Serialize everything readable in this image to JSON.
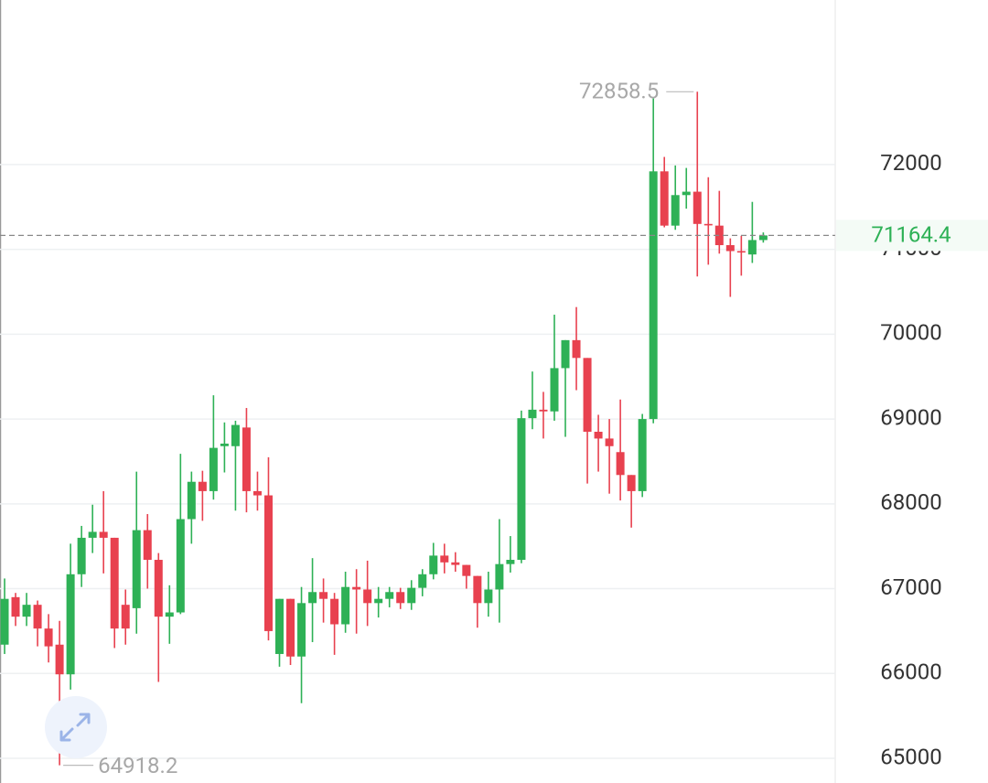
{
  "chart_data": {
    "type": "candlestick",
    "open": [
      66340,
      66900,
      66670,
      66810,
      66530,
      66340,
      65990,
      67170,
      67600,
      67670,
      67600,
      66810,
      66770,
      67690,
      67340,
      66670,
      66720,
      67820,
      68260,
      68150,
      68680,
      68680,
      68900,
      68150,
      68100,
      66230,
      66880,
      66200,
      66830,
      66960,
      66880,
      66580,
      67020,
      66990,
      66830,
      66880,
      66960,
      66830,
      67010,
      67170,
      67390,
      67310,
      67280,
      67150,
      66830,
      66990,
      67290,
      67340,
      69010,
      69110,
      69090,
      69600,
      69930,
      69720,
      68850,
      68770,
      68610,
      68340,
      68150,
      69000,
      71920,
      71280,
      71640,
      71680,
      71300,
      71280,
      71050,
      70980,
      70940,
      71110
    ],
    "high": [
      67120,
      66950,
      66950,
      66860,
      66700,
      66620,
      67530,
      67740,
      67990,
      68150,
      67600,
      66990,
      68380,
      67880,
      67420,
      67040,
      68590,
      68380,
      68390,
      69280,
      68960,
      68980,
      69130,
      68380,
      68550,
      66880,
      66880,
      67020,
      67360,
      67120,
      66950,
      67200,
      67230,
      67330,
      67020,
      67020,
      67010,
      67100,
      67230,
      67540,
      67530,
      67430,
      67280,
      67150,
      67200,
      67820,
      67620,
      69100,
      69560,
      69320,
      70230,
      69930,
      70320,
      69720,
      69050,
      69000,
      69230,
      68340,
      69060,
      72780,
      72090,
      71990,
      71960,
      72858.5,
      71850,
      71690,
      71130,
      71160,
      71560,
      71200
    ],
    "low": [
      66230,
      66560,
      66560,
      66320,
      66130,
      64918.2,
      65810,
      67020,
      67420,
      67180,
      66300,
      66340,
      66470,
      67000,
      65900,
      66350,
      66700,
      67530,
      67800,
      68050,
      68370,
      67920,
      67900,
      67920,
      66390,
      66080,
      66100,
      65650,
      66370,
      66600,
      66220,
      66480,
      66470,
      66560,
      66660,
      66780,
      66760,
      66750,
      66910,
      67110,
      67180,
      67200,
      67000,
      66540,
      66670,
      66600,
      67190,
      67300,
      68880,
      68770,
      68980,
      68790,
      69340,
      68240,
      68380,
      68120,
      68040,
      67720,
      68080,
      68950,
      71260,
      71230,
      71480,
      70680,
      70820,
      70950,
      70440,
      70690,
      70840,
      71080
    ],
    "close": [
      66880,
      66670,
      66810,
      66530,
      66320,
      65990,
      67170,
      67600,
      67670,
      67600,
      66530,
      66530,
      67690,
      67340,
      66670,
      66720,
      67820,
      68260,
      68150,
      68660,
      68710,
      68930,
      68150,
      68100,
      66500,
      66880,
      66200,
      66830,
      66960,
      66880,
      66580,
      67020,
      66990,
      66830,
      66880,
      66960,
      66830,
      67010,
      67170,
      67390,
      67310,
      67280,
      67150,
      66830,
      66990,
      67290,
      67340,
      69010,
      69110,
      69090,
      69600,
      69930,
      69720,
      68850,
      68770,
      68680,
      68340,
      68150,
      69000,
      71920,
      71280,
      71640,
      71680,
      71300,
      71290,
      71050,
      70980,
      70970,
      71110,
      71164.4
    ],
    "up_color": "#2eb156",
    "down_color": "#e8414f",
    "ylim": [
      64709,
      73940
    ],
    "yticks": [
      65000,
      66000,
      67000,
      68000,
      69000,
      70000,
      71000,
      72000
    ],
    "grid": true
  }
}
